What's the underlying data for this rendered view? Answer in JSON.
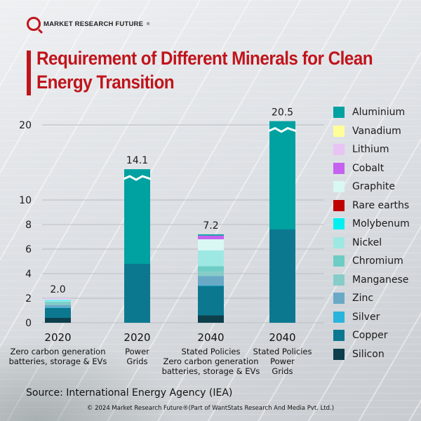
{
  "brand": {
    "name": "MARKET RESEARCH FUTURE",
    "registered": "®"
  },
  "header": {
    "title_line1": "Requirement of Different Minerals for Clean",
    "title_line2": "Energy Transition"
  },
  "footer": {
    "source": "Source: International Energy Agency (IEA)",
    "copyright": "© 2024 Market Research Future®(Part of WantStats Research And Media Pvt. Ltd.)"
  },
  "chart_data": {
    "type": "bar",
    "stacked": true,
    "title": "Requirement of Different Minerals for Clean Energy Transition",
    "xlabel": "",
    "ylabel": "",
    "y_ticks": [
      0,
      2,
      4,
      6,
      8,
      10,
      20
    ],
    "y_axis_break": [
      10,
      20
    ],
    "grid": true,
    "legend_position": "right",
    "categories": [
      {
        "year": "2020",
        "desc": [
          "Zero carbon generation",
          "batteries, storage & EVs"
        ]
      },
      {
        "year": "2020",
        "desc": [
          "Power",
          "Grids"
        ]
      },
      {
        "year": "2040",
        "desc": [
          "Stated Policies",
          "Zero carbon generation",
          "batteries, storage & EVs"
        ]
      },
      {
        "year": "2040",
        "desc": [
          "Stated Policies",
          "Power",
          "Grids"
        ]
      }
    ],
    "totals": [
      "2.0",
      "14.1",
      "7.2",
      "20.5"
    ],
    "total_values": [
      2.0,
      14.1,
      7.2,
      20.5
    ],
    "series": [
      {
        "name": "Silicon",
        "color": "#0d3f4c",
        "values": [
          0.4,
          0,
          0.6,
          0
        ]
      },
      {
        "name": "Copper",
        "color": "#0c7890",
        "values": [
          0.8,
          4.8,
          2.4,
          7.6
        ]
      },
      {
        "name": "Silver",
        "color": "#2ab4dc",
        "values": [
          0.05,
          0,
          0.05,
          0
        ]
      },
      {
        "name": "Zinc",
        "color": "#6aa9c6",
        "values": [
          0.2,
          0,
          0.75,
          0
        ]
      },
      {
        "name": "Manganese",
        "color": "#86ccc9",
        "values": [
          0.15,
          0,
          0.4,
          0
        ]
      },
      {
        "name": "Chromium",
        "color": "#6dcdc4",
        "values": [
          0.1,
          0,
          0.4,
          0
        ]
      },
      {
        "name": "Nickel",
        "color": "#9ee8e3",
        "values": [
          0.1,
          0,
          1.3,
          0
        ]
      },
      {
        "name": "Molybenum",
        "color": "#00f0f0",
        "values": [
          0.05,
          0,
          0,
          0
        ]
      },
      {
        "name": "Rare earths",
        "color": "#c00000",
        "values": [
          0,
          0,
          0,
          0
        ]
      },
      {
        "name": "Graphite",
        "color": "#d9f7f3",
        "values": [
          0.05,
          0,
          0.9,
          0
        ]
      },
      {
        "name": "Cobalt",
        "color": "#c562f0",
        "values": [
          0,
          0,
          0.3,
          0
        ]
      },
      {
        "name": "Lithium",
        "color": "#e8c4f4",
        "values": [
          0.1,
          0,
          0,
          0
        ]
      },
      {
        "name": "Vanadium",
        "color": "#ffff99",
        "values": [
          0,
          0,
          0,
          0
        ]
      },
      {
        "name": "Aluminium",
        "color": "#00a1a1",
        "values": [
          0,
          9.3,
          0.1,
          12.9
        ]
      }
    ],
    "legend_order": [
      "Aluminium",
      "Vanadium",
      "Lithium",
      "Cobalt",
      "Graphite",
      "Rare earths",
      "Molybenum",
      "Nickel",
      "Chromium",
      "Manganese",
      "Zinc",
      "Silver",
      "Copper",
      "Silicon"
    ]
  }
}
